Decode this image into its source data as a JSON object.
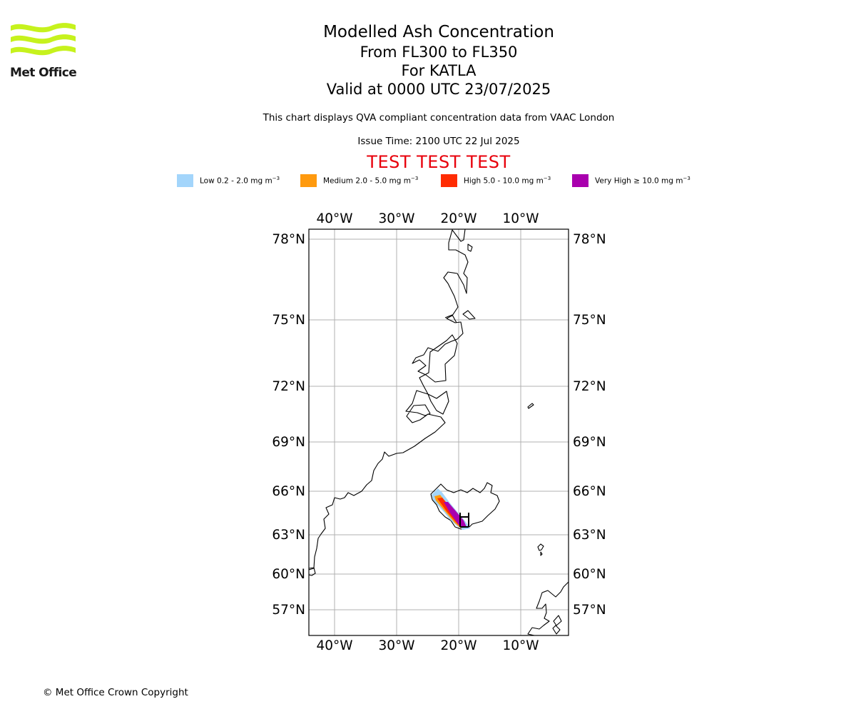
{
  "logo": {
    "text": "Met Office",
    "colors": {
      "waves": "#c6f21d",
      "text": "#1a1a1a"
    }
  },
  "title": "Modelled Ash Concentration",
  "subtitle_lines": [
    "From FL300 to FL350",
    "For KATLA",
    "Valid at 0000 UTC 23/07/2025"
  ],
  "description": "This chart displays QVA compliant concentration data from VAAC London",
  "issue_time": "Issue Time: 2100 UTC 22 Jul 2025",
  "banner": "TEST TEST TEST",
  "legend": [
    {
      "name": "Low",
      "range": "0.2 - 2.0 mg m",
      "color": "#a3d5fb"
    },
    {
      "name": "Medium",
      "range": "2.0 - 5.0 mg m",
      "color": "#ff9a0e"
    },
    {
      "name": "High",
      "range": "5.0 - 10.0 mg m",
      "color": "#ff2c03"
    },
    {
      "name": "Very High",
      "range": "≥ 10.0 mg m",
      "color": "#a900ae"
    }
  ],
  "legend_unit_exponent": "−3",
  "map": {
    "projection": "polar stereographic",
    "lon_labels": [
      "40°W",
      "30°W",
      "20°W",
      "10°W"
    ],
    "lat_labels": [
      "78°N",
      "75°N",
      "72°N",
      "69°N",
      "66°N",
      "63°N",
      "60°N",
      "57°N"
    ],
    "grid": true,
    "volcano": "KATLA",
    "volcano_lat": 63.63,
    "volcano_lon": -19.05
  },
  "copyright": "© Met Office Crown Copyright"
}
